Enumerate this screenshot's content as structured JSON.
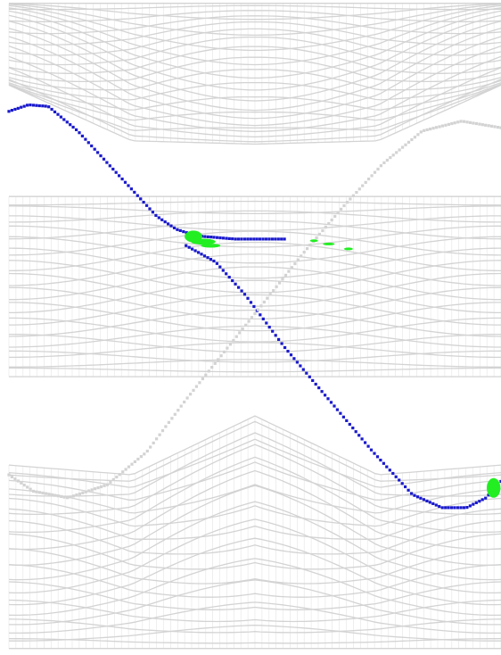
{
  "chart_data": {
    "type": "scatter",
    "title": "",
    "xlabel": "",
    "ylabel": "",
    "axes_visible": false,
    "grid": false,
    "xlim": [
      0,
      1
    ],
    "ylim": [
      -1,
      1
    ],
    "colors": {
      "bulk": "#d3d3d3",
      "edge_main": "#1a1acc",
      "edge_other": "#d3d3d3",
      "highlight": "#22ee22"
    },
    "series": [
      {
        "role": "bulk",
        "bands": [
          {
            "center": 0.72,
            "amp": 0.075,
            "upper": 0.99,
            "lower_edge": [
              [
                0.0,
                0.74
              ],
              [
                0.25,
                0.57
              ],
              [
                0.5,
                0.56
              ],
              [
                0.75,
                0.57
              ],
              [
                1.0,
                0.74
              ]
            ]
          },
          {
            "center": 0.1,
            "amp": 0.05,
            "upper": 0.4,
            "lower": -0.15
          },
          {
            "center": -0.62,
            "amp": 0.08,
            "lower": -0.98,
            "upper_edge": [
              [
                0.0,
                -0.42
              ],
              [
                0.25,
                -0.45
              ],
              [
                0.5,
                -0.27
              ],
              [
                0.75,
                -0.45
              ],
              [
                1.0,
                -0.42
              ]
            ]
          }
        ]
      },
      {
        "role": "edge_main",
        "points": [
          [
            0.0,
            0.66
          ],
          [
            0.04,
            0.68
          ],
          [
            0.08,
            0.675
          ],
          [
            0.14,
            0.6
          ],
          [
            0.22,
            0.47
          ],
          [
            0.3,
            0.34
          ],
          [
            0.34,
            0.3
          ],
          [
            0.38,
            0.28
          ],
          [
            0.46,
            0.27
          ],
          [
            0.52,
            0.27
          ],
          [
            0.56,
            0.27
          ]
        ]
      },
      {
        "role": "edge_main",
        "points": [
          [
            0.36,
            0.25
          ],
          [
            0.42,
            0.2
          ],
          [
            0.48,
            0.1
          ],
          [
            0.56,
            -0.06
          ],
          [
            0.65,
            -0.22
          ],
          [
            0.74,
            -0.38
          ],
          [
            0.82,
            -0.51
          ],
          [
            0.88,
            -0.55
          ],
          [
            0.93,
            -0.55
          ],
          [
            0.97,
            -0.52
          ],
          [
            1.0,
            -0.47
          ]
        ]
      },
      {
        "role": "edge_other",
        "points": [
          [
            0.0,
            -0.45
          ],
          [
            0.05,
            -0.5
          ],
          [
            0.12,
            -0.52
          ],
          [
            0.2,
            -0.48
          ],
          [
            0.28,
            -0.38
          ],
          [
            0.36,
            -0.22
          ],
          [
            0.44,
            -0.07
          ],
          [
            0.52,
            0.08
          ],
          [
            0.6,
            0.23
          ],
          [
            0.68,
            0.37
          ],
          [
            0.76,
            0.5
          ],
          [
            0.84,
            0.6
          ],
          [
            0.92,
            0.63
          ],
          [
            1.0,
            0.61
          ]
        ]
      },
      {
        "role": "highlight",
        "blobs": [
          {
            "x": 0.375,
            "y": 0.278,
            "rx": 0.018,
            "ry": 0.018
          },
          {
            "x": 0.395,
            "y": 0.262,
            "rx": 0.025,
            "ry": 0.009
          },
          {
            "x": 0.41,
            "y": 0.25,
            "rx": 0.02,
            "ry": 0.006
          },
          {
            "x": 0.62,
            "y": 0.265,
            "rx": 0.008,
            "ry": 0.004
          },
          {
            "x": 0.65,
            "y": 0.255,
            "rx": 0.012,
            "ry": 0.004
          },
          {
            "x": 0.69,
            "y": 0.24,
            "rx": 0.009,
            "ry": 0.004
          },
          {
            "x": 0.985,
            "y": -0.49,
            "rx": 0.014,
            "ry": 0.03
          }
        ]
      }
    ]
  }
}
